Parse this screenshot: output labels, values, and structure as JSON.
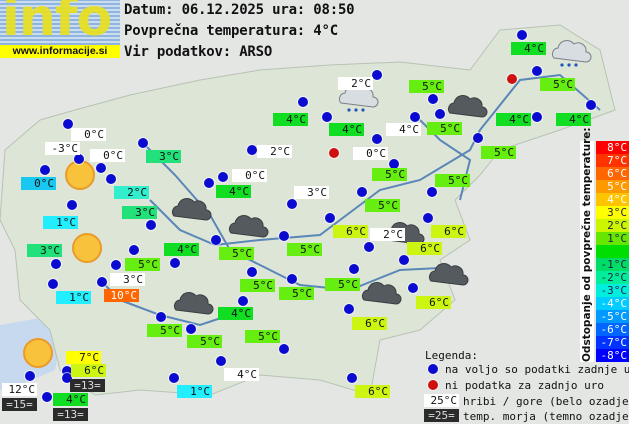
{
  "logo": {
    "word": "info",
    "url": "www.informacije.si"
  },
  "header": {
    "date_line": "Datum: 06.12.2025 ura: 08:50",
    "avg_line": "Povprečna temperatura: 4°C",
    "source_line": "Vir podatkov: ARSO"
  },
  "colors": {
    "station_ok": "#0a0ad0",
    "station_missing": "#d01010",
    "mountain_bg": "#ffffff",
    "sea_bg": "#2b2b2b",
    "sea": "#c7d9ee",
    "land": "#dde6d6",
    "river": "#5a86b8"
  },
  "labels": [
    {
      "text": "0°C",
      "bg": "#ffffff"
    },
    {
      "text": "-3°C",
      "bg": "#ffffff"
    },
    {
      "text": "0°C",
      "bg": "#ffffff"
    },
    {
      "text": "0°C",
      "bg": "#18c8f0"
    },
    {
      "text": "2°C",
      "bg": "#33eecc"
    },
    {
      "text": "3°C",
      "bg": "#22e07a"
    },
    {
      "text": "3°C",
      "bg": "#22e07a"
    },
    {
      "text": "2°C",
      "bg": "#ffffff"
    },
    {
      "text": "0°C",
      "bg": "#ffffff"
    },
    {
      "text": "4°C",
      "bg": "#11dd22"
    },
    {
      "text": "1°C",
      "bg": "#22eeff"
    },
    {
      "text": "3°C",
      "bg": "#22e07a"
    },
    {
      "text": "5°C",
      "bg": "#66ee11"
    },
    {
      "text": "3°C",
      "bg": "#ffffff"
    },
    {
      "text": "1°C",
      "bg": "#22eeff"
    },
    {
      "text": "10°C",
      "bg": "#ff6600",
      "fg": "#ffffff"
    },
    {
      "text": "4°C",
      "bg": "#11dd22"
    },
    {
      "text": "5°C",
      "bg": "#66ee11"
    },
    {
      "text": "3°C",
      "bg": "#ffffff"
    },
    {
      "text": "5°C",
      "bg": "#66ee11"
    },
    {
      "text": "5°C",
      "bg": "#66ee11"
    },
    {
      "text": "5°C",
      "bg": "#66ee11"
    },
    {
      "text": "4°C",
      "bg": "#11dd22"
    },
    {
      "text": "2°C",
      "bg": "#ffffff"
    },
    {
      "text": "4°C",
      "bg": "#11dd22"
    },
    {
      "text": "4°C",
      "bg": "#ffffff"
    },
    {
      "text": "5°C",
      "bg": "#66ee11"
    },
    {
      "text": "5°C",
      "bg": "#66ee11"
    },
    {
      "text": "0°C",
      "bg": "#ffffff"
    },
    {
      "text": "5°C",
      "bg": "#66ee11"
    },
    {
      "text": "5°C",
      "bg": "#66ee11"
    },
    {
      "text": "4°C",
      "bg": "#11dd22"
    },
    {
      "text": "5°C",
      "bg": "#66ee11"
    },
    {
      "text": "4°C",
      "bg": "#11dd22"
    },
    {
      "text": "4°C",
      "bg": "#11dd22"
    },
    {
      "text": "5°C",
      "bg": "#66ee11"
    },
    {
      "text": "5°C",
      "bg": "#66ee11"
    },
    {
      "text": "6°C",
      "bg": "#ccf511"
    },
    {
      "text": "6°C",
      "bg": "#ccf511"
    },
    {
      "text": "2°C",
      "bg": "#ffffff"
    },
    {
      "text": "6°C",
      "bg": "#ccf511"
    },
    {
      "text": "5°C",
      "bg": "#66ee11"
    },
    {
      "text": "6°C",
      "bg": "#ccf511"
    },
    {
      "text": "6°C",
      "bg": "#ccf511"
    },
    {
      "text": "4°C",
      "bg": "#11dd22"
    },
    {
      "text": "5°C",
      "bg": "#66ee11"
    },
    {
      "text": "5°C",
      "bg": "#66ee11"
    },
    {
      "text": "5°C",
      "bg": "#66ee11"
    },
    {
      "text": "4°C",
      "bg": "#ffffff"
    },
    {
      "text": "1°C",
      "bg": "#22eeff"
    },
    {
      "text": "6°C",
      "bg": "#ccf511"
    },
    {
      "text": "7°C",
      "bg": "#ffff00"
    },
    {
      "text": "6°C",
      "bg": "#ccf511"
    },
    {
      "text": "=13=",
      "bg": "#2b2b2b",
      "dark": true
    },
    {
      "text": "12°C",
      "bg": "#ffffff"
    },
    {
      "text": "=15=",
      "bg": "#2b2b2b",
      "dark": true
    },
    {
      "text": "4°C",
      "bg": "#11dd22"
    },
    {
      "text": "=13=",
      "bg": "#2b2b2b",
      "dark": true
    }
  ],
  "weather_icons": [
    "cloudy",
    "cloudy",
    "cloudy",
    "cloudy",
    "cloudy",
    "cloudy",
    "cloudy",
    "rain-cloud",
    "rain-cloud",
    "sunny",
    "sunny",
    "sunny"
  ],
  "scale": {
    "title": "Odstopanje od povprečne temperature:",
    "steps": [
      {
        "text": "8°C",
        "color": "#ff0000"
      },
      {
        "text": "7°C",
        "color": "#ff3300"
      },
      {
        "text": "6°C",
        "color": "#ff6600"
      },
      {
        "text": "5°C",
        "color": "#ff9900"
      },
      {
        "text": "4°C",
        "color": "#ffc400"
      },
      {
        "text": "3°C",
        "color": "#ffff00"
      },
      {
        "text": "2°C",
        "color": "#ccf500"
      },
      {
        "text": "1°C",
        "color": "#66e600"
      },
      {
        "text": "",
        "color": "#00dd00"
      },
      {
        "text": "-1°C",
        "color": "#00dd66"
      },
      {
        "text": "-2°C",
        "color": "#00ee99"
      },
      {
        "text": "-3°C",
        "color": "#00eedd"
      },
      {
        "text": "-4°C",
        "color": "#00ccff"
      },
      {
        "text": "-5°C",
        "color": "#0099ff"
      },
      {
        "text": "-6°C",
        "color": "#0066ff"
      },
      {
        "text": "-7°C",
        "color": "#0033ff"
      },
      {
        "text": "-8°C",
        "color": "#0000ff"
      }
    ]
  },
  "legend": {
    "title": "Legenda:",
    "blue_dot": "na voljo so podatki zadnje ure",
    "red_dot": "ni podatka za zadnjo uro",
    "mountain_sample": "25°C",
    "mountain_text": "hribi / gore (belo ozadje)",
    "sea_sample": "=25=",
    "sea_text": "temp. morja (temno ozadje)"
  }
}
